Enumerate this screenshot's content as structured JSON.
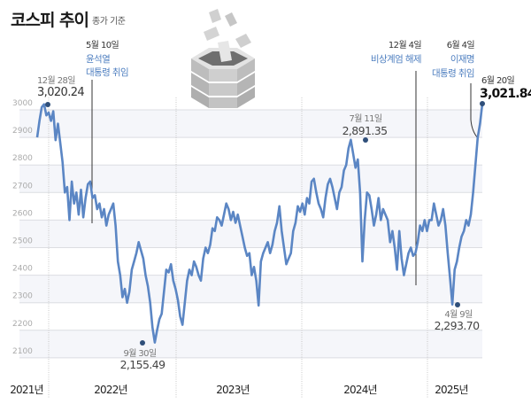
{
  "header": {
    "title": "코스피 추이",
    "subtitle": "종가 기준"
  },
  "illustration": {
    "icon": "paper-burning-barrel-icon"
  },
  "colors": {
    "line": "#5b86c4",
    "dot": "#2f4f7a",
    "event_text": "#4f7fc0",
    "band": "#f5f6fa",
    "grid": "#dcdde2",
    "event_line": "#333333"
  },
  "annotations": {
    "start_peak": {
      "date": "12월 28일",
      "value": "3,020.24"
    },
    "yoon": {
      "date": "5월 10일",
      "event_line1": "윤석열",
      "event_line2": "대통령 취임"
    },
    "low_2022": {
      "date": "9월 30일",
      "value": "2,155.49"
    },
    "peak_2024": {
      "date": "7월 11일",
      "value": "2,891.35"
    },
    "martial": {
      "date": "12월 4일",
      "event_line1": "비상계엄 해제"
    },
    "lee": {
      "date": "6월 4일",
      "event_line1": "이재명",
      "event_line2": "대통령 취임"
    },
    "low_2025": {
      "date": "4월 9일",
      "value": "2,293.70"
    },
    "last": {
      "date": "6월 20일",
      "value": "3,021.84"
    }
  },
  "chart_data": {
    "type": "line",
    "title": "코스피 추이",
    "subtitle": "종가 기준",
    "xlabel": "",
    "ylabel": "",
    "ylim": [
      2050,
      3050
    ],
    "yticks": [
      3000,
      2900,
      2800,
      2700,
      2600,
      2500,
      2400,
      2300,
      2200,
      2100
    ],
    "xticks": [
      "2021년",
      "2022년",
      "2023년",
      "2024년",
      "2025년"
    ],
    "grid": true,
    "legend": "none",
    "series": [
      {
        "name": "KOSPI",
        "x_desc": "approx. biweekly from Dec 2021 to Jun 20 2025",
        "values": [
          2900,
          2960,
          3010,
          3020.24,
          2980,
          2990,
          2960,
          2995,
          2890,
          2950,
          2880,
          2810,
          2700,
          2720,
          2600,
          2740,
          2660,
          2700,
          2620,
          2710,
          2610,
          2680,
          2730,
          2740,
          2680,
          2690,
          2640,
          2660,
          2610,
          2640,
          2580,
          2620,
          2640,
          2660,
          2580,
          2450,
          2400,
          2320,
          2350,
          2300,
          2340,
          2420,
          2450,
          2480,
          2520,
          2490,
          2460,
          2400,
          2360,
          2300,
          2210,
          2155.49,
          2200,
          2240,
          2260,
          2340,
          2420,
          2410,
          2440,
          2380,
          2350,
          2310,
          2250,
          2220,
          2300,
          2380,
          2420,
          2400,
          2450,
          2430,
          2400,
          2380,
          2460,
          2500,
          2480,
          2510,
          2570,
          2560,
          2610,
          2600,
          2580,
          2620,
          2660,
          2640,
          2600,
          2630,
          2590,
          2620,
          2580,
          2540,
          2500,
          2470,
          2480,
          2400,
          2430,
          2380,
          2290,
          2450,
          2480,
          2500,
          2520,
          2480,
          2510,
          2560,
          2590,
          2650,
          2560,
          2500,
          2440,
          2460,
          2480,
          2560,
          2590,
          2650,
          2630,
          2660,
          2620,
          2680,
          2660,
          2740,
          2750,
          2700,
          2660,
          2640,
          2610,
          2680,
          2730,
          2750,
          2720,
          2680,
          2640,
          2700,
          2720,
          2780,
          2800,
          2860,
          2891.35,
          2840,
          2790,
          2820,
          2700,
          2450,
          2600,
          2700,
          2690,
          2640,
          2580,
          2620,
          2680,
          2600,
          2640,
          2620,
          2600,
          2520,
          2560,
          2500,
          2420,
          2560,
          2460,
          2400,
          2440,
          2480,
          2500,
          2470,
          2480,
          2520,
          2580,
          2560,
          2600,
          2560,
          2600,
          2600,
          2660,
          2620,
          2580,
          2600,
          2640,
          2580,
          2480,
          2390,
          2293.7,
          2420,
          2450,
          2500,
          2540,
          2560,
          2600,
          2580,
          2620,
          2700,
          2800,
          2900,
          2950,
          3021.84
        ]
      }
    ],
    "key_points": [
      {
        "label": "12월 28일",
        "value": 3020.24
      },
      {
        "label": "9월 30일",
        "value": 2155.49
      },
      {
        "label": "7월 11일",
        "value": 2891.35
      },
      {
        "label": "4월 9일",
        "value": 2293.7
      },
      {
        "label": "6월 20일",
        "value": 3021.84
      }
    ],
    "events": [
      {
        "date": "5월 10일",
        "text": "윤석열 대통령 취임"
      },
      {
        "date": "12월 4일",
        "text": "비상계엄 해제"
      },
      {
        "date": "6월 4일",
        "text": "이재명 대통령 취임"
      }
    ]
  }
}
